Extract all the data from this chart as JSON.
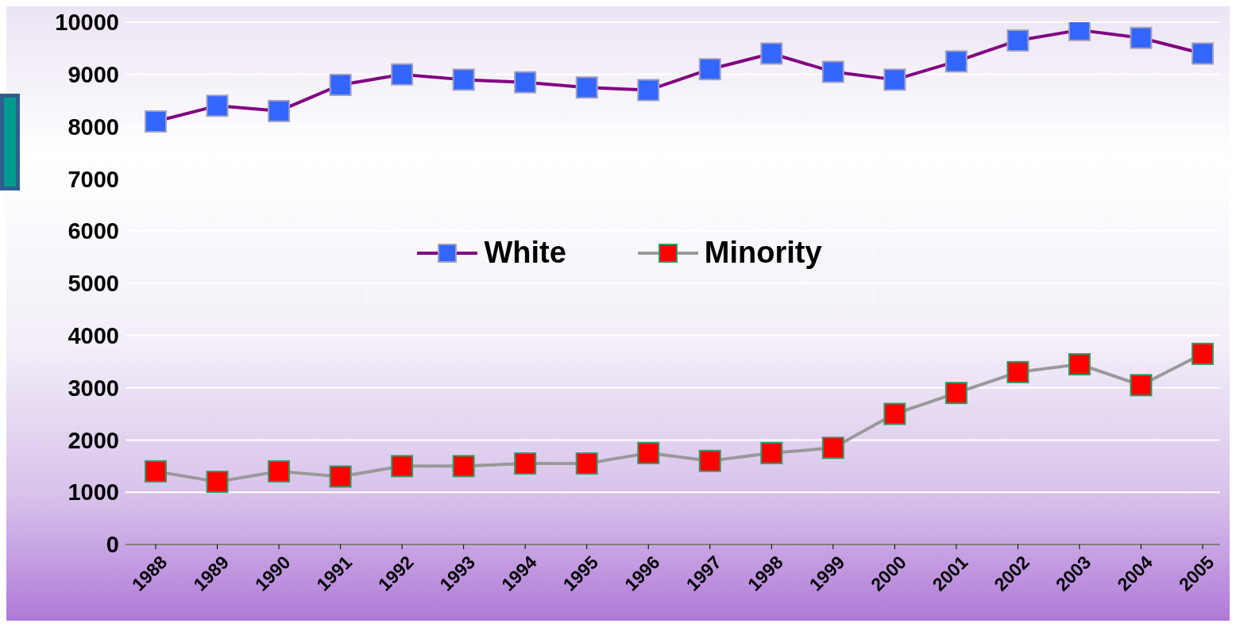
{
  "chart_data": {
    "type": "line",
    "categories": [
      "1988",
      "1989",
      "1990",
      "1991",
      "1992",
      "1993",
      "1994",
      "1995",
      "1996",
      "1997",
      "1998",
      "1999",
      "2000",
      "2001",
      "2002",
      "2003",
      "2004",
      "2005"
    ],
    "series": [
      {
        "name": "White",
        "color": "#800080",
        "values": [
          8100,
          8400,
          8300,
          8800,
          9000,
          8900,
          8850,
          8750,
          8700,
          9100,
          9400,
          9050,
          8900,
          9250,
          9650,
          9850,
          9700,
          9400
        ]
      },
      {
        "name": "Minority",
        "color": "#999999",
        "values": [
          1400,
          1200,
          1400,
          1300,
          1500,
          1500,
          1550,
          1550,
          1750,
          1600,
          1750,
          1850,
          2500,
          2900,
          3300,
          3450,
          3050,
          3650
        ]
      }
    ],
    "ylim": [
      0,
      10000
    ],
    "yticks": [
      0,
      1000,
      2000,
      3000,
      4000,
      5000,
      6000,
      7000,
      8000,
      9000,
      10000
    ],
    "grid": "y",
    "legend": "center",
    "marker": "square"
  }
}
